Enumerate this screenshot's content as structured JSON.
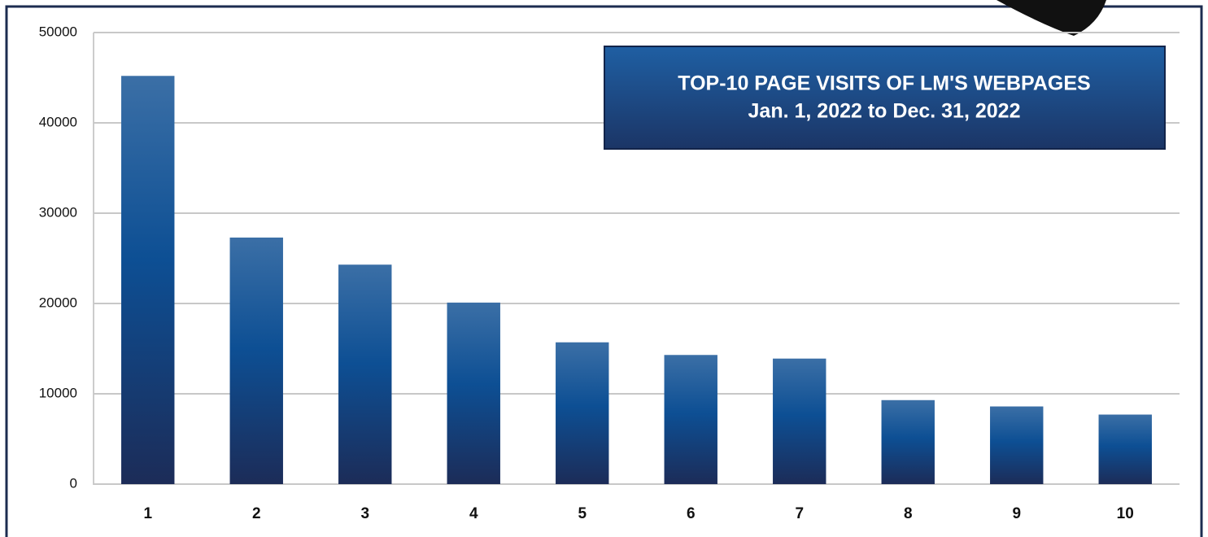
{
  "chart_data": {
    "type": "bar",
    "title": "TOP-10 PAGE VISITS OF LM'S WEBPAGES",
    "subtitle": "Jan. 1, 2022 to Dec. 31, 2022",
    "categories": [
      "1",
      "2",
      "3",
      "4",
      "5",
      "6",
      "7",
      "8",
      "9",
      "10"
    ],
    "values": [
      45200,
      27300,
      24300,
      20100,
      15700,
      14300,
      13900,
      9300,
      8600,
      7700
    ],
    "color": "#0d4f94",
    "ylim": [
      0,
      50000
    ],
    "yticks": [
      0,
      10000,
      20000,
      30000,
      40000,
      50000
    ],
    "grid": true
  }
}
